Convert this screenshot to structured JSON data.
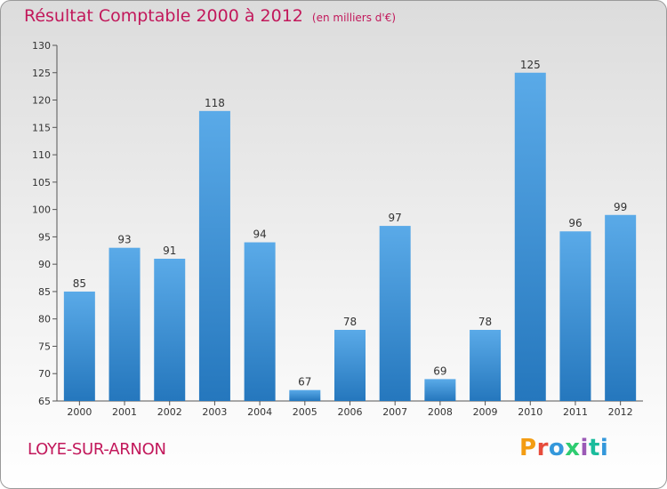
{
  "header": {
    "title": "Résultat Comptable 2000 à 2012",
    "subtitle": "(en milliers d'€)"
  },
  "footer": {
    "commune": "LOYE-SUR-ARNON",
    "logo_letters": [
      "P",
      "r",
      "o",
      "x",
      "i",
      "t",
      "i"
    ]
  },
  "chart_data": {
    "type": "bar",
    "title": "Résultat Comptable 2000 à 2012",
    "subtitle": "(en milliers d'€)",
    "xlabel": "",
    "ylabel": "",
    "categories": [
      "2000",
      "2001",
      "2002",
      "2003",
      "2004",
      "2005",
      "2006",
      "2007",
      "2008",
      "2009",
      "2010",
      "2011",
      "2012"
    ],
    "values": [
      85,
      93,
      91,
      118,
      94,
      67,
      78,
      97,
      69,
      78,
      125,
      96,
      99
    ],
    "ylim": [
      65,
      130
    ],
    "yticks": [
      65,
      70,
      75,
      80,
      85,
      90,
      95,
      100,
      105,
      110,
      115,
      120,
      125,
      130
    ],
    "grid": false,
    "bar_color": "#3a8fd6"
  }
}
